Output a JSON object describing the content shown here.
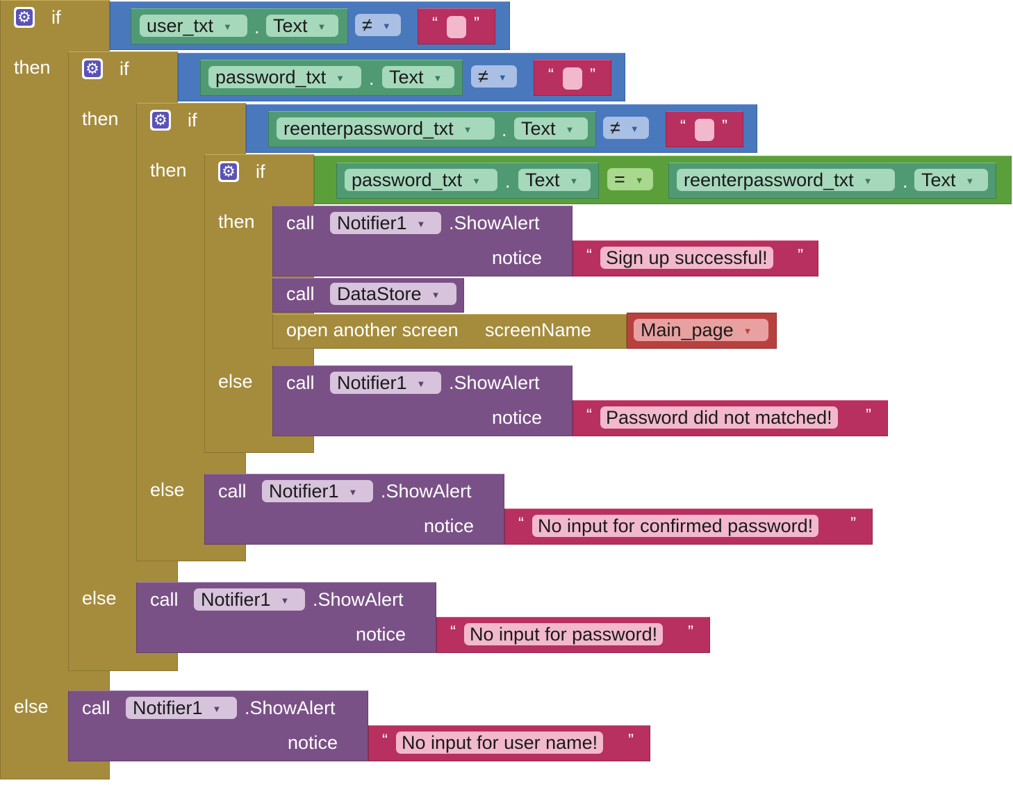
{
  "keywords": {
    "if": "if",
    "then": "then",
    "else": "else",
    "call": "call",
    "notice": "notice",
    "dot": ".",
    "open_screen": "open another screen",
    "screen_name": "screenName",
    "quote_open": "“",
    "quote_close": "”"
  },
  "conditions": {
    "c1": {
      "component": "user_txt",
      "property": "Text",
      "op": "≠",
      "value": ""
    },
    "c2": {
      "component": "password_txt",
      "property": "Text",
      "op": "≠",
      "value": ""
    },
    "c3": {
      "component": "reenterpassword_txt",
      "property": "Text",
      "op": "≠",
      "value": ""
    },
    "c4": {
      "left_component": "password_txt",
      "left_property": "Text",
      "op": "=",
      "right_component": "reenterpassword_txt",
      "right_property": "Text"
    }
  },
  "calls": {
    "success": {
      "component": "Notifier1",
      "method": ".ShowAlert",
      "notice": "Sign up successful!"
    },
    "datastore": {
      "component": "DataStore"
    },
    "open_screen": {
      "screen": "Main_page"
    },
    "mismatch": {
      "component": "Notifier1",
      "method": ".ShowAlert",
      "notice": "Password did not matched!"
    },
    "no_confirm": {
      "component": "Notifier1",
      "method": ".ShowAlert",
      "notice": "No input for confirmed password!"
    },
    "no_password": {
      "component": "Notifier1",
      "method": ".ShowAlert",
      "notice": "No input for password!"
    },
    "no_user": {
      "component": "Notifier1",
      "method": ".ShowAlert",
      "notice": "No input for user name!"
    }
  },
  "colors": {
    "control": "#a58b3c",
    "logic": "#4a78bd",
    "compare": "#5b9f3a",
    "procedure": "#7a5186",
    "text": "#b8305f",
    "component": "#4f9a72"
  },
  "icons": {
    "mutator": "gear-icon",
    "dropdown": "dropdown-arrow-icon"
  }
}
